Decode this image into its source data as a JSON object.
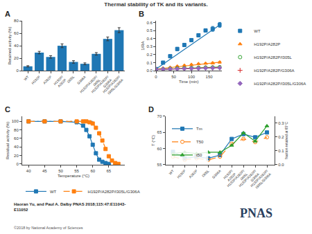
{
  "title": "Thermal stability of TK and its variants.",
  "annotations": [
    "Haoran Yu, and Paul A. Dalby PNAS 2018;115:47:E11043-\nE11052",
    "©2018 by National Academy of Sciences",
    "PNAS"
  ],
  "chart_data": [
    {
      "type": "bar",
      "title": "A",
      "categories": [
        "WT",
        "H192P",
        "A282P",
        "H192P/\nA282P",
        "I305L",
        "G306A",
        "H192P/A282P/\nI305L",
        "H192P/A282P/\nG306A",
        "H192P/A282P/\nI305L/G306A"
      ],
      "values": [
        7,
        29,
        22,
        40,
        14,
        11,
        27,
        51,
        65
      ],
      "errors": [
        1,
        2,
        2,
        3,
        2,
        1.5,
        2,
        3,
        4
      ],
      "ylabel": "Retained activity (%)",
      "ylim": [
        0,
        80
      ],
      "yticks": [
        0,
        20,
        40,
        60,
        80
      ],
      "grid": false
    },
    {
      "type": "scatter",
      "title": "B",
      "x": [
        0,
        20,
        40,
        60,
        80,
        100,
        120,
        140,
        160,
        180
      ],
      "series": [
        {
          "name": "WT",
          "marker": "square",
          "line_style": "none",
          "values": [
            0.02,
            0.1,
            0.18,
            0.27,
            0.32,
            0.38,
            0.44,
            0.5,
            0.52,
            0.57
          ],
          "errors": [
            0.01,
            0.01,
            0.015,
            0.02,
            0.02,
            0.02,
            0.02,
            0.02,
            0.03,
            0.03
          ]
        },
        {
          "type": "line",
          "line_style": "solid",
          "x": [
            0,
            180
          ],
          "values": [
            0.02,
            0.57
          ]
        },
        {
          "name": "H192P/A282P",
          "marker": "triangle-up",
          "line_style": "none",
          "values": [
            0.02,
            0.03,
            0.04,
            0.055,
            0.065,
            0.075,
            0.085,
            0.09,
            0.095,
            0.105
          ],
          "errors": [
            0.005,
            0.005,
            0.005,
            0.005,
            0.005,
            0.005,
            0.005,
            0.005,
            0.01,
            0.01
          ]
        },
        {
          "type": "line",
          "line_style": "solid",
          "x": [
            0,
            180
          ],
          "values": [
            0.02,
            0.105
          ]
        },
        {
          "name": "H192P/A282P/I305L",
          "marker": "circle-open",
          "line_style": "none",
          "values": [
            0.015,
            0.02,
            0.025,
            0.03,
            0.033,
            0.036,
            0.038,
            0.04,
            0.042,
            0.045
          ]
        },
        {
          "type": "line",
          "line_style": "solid",
          "x": [
            0,
            180
          ],
          "values": [
            0.015,
            0.045
          ]
        },
        {
          "name": "H192P/A282P/G306A",
          "marker": "cross",
          "line_style": "none",
          "values": [
            0.015,
            0.02,
            0.022,
            0.025,
            0.028,
            0.03,
            0.032,
            0.034,
            0.036,
            0.038
          ]
        },
        {
          "type": "line",
          "line_style": "solid",
          "x": [
            0,
            180
          ],
          "values": [
            0.015,
            0.038
          ]
        },
        {
          "name": "H192P/A282P/I305L/G306A",
          "marker": "diamond",
          "line_style": "none",
          "values": [
            0.015,
            0.018,
            0.02,
            0.022,
            0.025,
            0.027,
            0.029,
            0.031,
            0.033,
            0.035
          ]
        },
        {
          "type": "line",
          "line_style": "solid",
          "x": [
            0,
            180
          ],
          "values": [
            0.015,
            0.035
          ]
        }
      ],
      "xlabel": "Time (min)",
      "ylabel": "1/RA",
      "xlim": [
        0,
        185
      ],
      "xticks": [
        0,
        50,
        100,
        150
      ],
      "ylim": [
        0,
        0.62
      ],
      "yticks": [
        {
          "value": 0,
          "label": "0.0"
        },
        0.1,
        0.2,
        0.3,
        0.4,
        0.5,
        0.6
      ],
      "legend": "right",
      "grid": false
    },
    {
      "type": "line",
      "title": "C",
      "series": [
        {
          "name": "WT",
          "marker": "square",
          "line_style": "solid",
          "x": [
            40,
            45,
            50,
            55,
            57,
            58,
            59,
            60,
            61,
            62,
            63,
            64,
            65
          ],
          "values": [
            100,
            100,
            100,
            98,
            90,
            80,
            65,
            45,
            25,
            10,
            5,
            2,
            0
          ]
        },
        {
          "line_style": "dotted",
          "x": [
            40,
            60
          ],
          "values": [
            100,
            100
          ]
        },
        {
          "name": "H192P/A282P/I305L/G306A",
          "marker": "square",
          "line_style": "dashed",
          "x": [
            40,
            45,
            50,
            55,
            57,
            58,
            59,
            60,
            61,
            62,
            63,
            64,
            65,
            66,
            67,
            68
          ],
          "values": [
            100,
            100,
            100,
            100,
            100,
            100,
            98,
            95,
            85,
            72,
            55,
            35,
            18,
            8,
            2,
            0
          ]
        }
      ],
      "xlabel": "Temperature (°C)",
      "ylabel": "Residual activity (%)",
      "xlim": [
        38,
        70
      ],
      "xticks": [
        40,
        45,
        50,
        55,
        60,
        65
      ],
      "ylim": [
        -2,
        112
      ],
      "yticks": [
        0,
        20,
        40,
        60,
        80,
        100
      ],
      "legend": "bottom",
      "grid": false
    },
    {
      "type": "line",
      "title": "D",
      "categories": [
        "WT",
        "H192P",
        "A282P",
        "I305L",
        "G306A",
        "H192P/\nA282P",
        "H192P/A282P/\nI305L",
        "H192P/A282P/\nG306A",
        "H192P/A282P/\nI305L/G306A"
      ],
      "series": [
        {
          "name": "Tm",
          "marker": "square",
          "line_style": "solid",
          "values": [
            59,
            57,
            57.5,
            57,
            58,
            63,
            64.5,
            63.5,
            65
          ]
        },
        {
          "name": "T50",
          "marker": "circle-open",
          "line_style": "dashed",
          "values": [
            57.5,
            56.5,
            57,
            56.5,
            57.5,
            61.5,
            63,
            62,
            63.5
          ]
        },
        {
          "name": "t50",
          "marker": "triangle-up",
          "line_style": "solid",
          "axis": "y2",
          "values": [
            0.08,
            0.09,
            0.08,
            0.09,
            0.09,
            0.14,
            0.23,
            0.17,
            0.28
          ]
        }
      ],
      "ylabel": "T (°C)",
      "y2label": "fraction retained at 65°C",
      "ylim": [
        55,
        70
      ],
      "yticks": [
        55,
        60,
        65,
        70
      ],
      "y2lim": [
        0,
        0.35
      ],
      "y2ticks": [
        {
          "value": 0,
          "label": "0.0"
        },
        0.1,
        0.2,
        0.3
      ],
      "legend": "upper left",
      "grid": false
    }
  ]
}
